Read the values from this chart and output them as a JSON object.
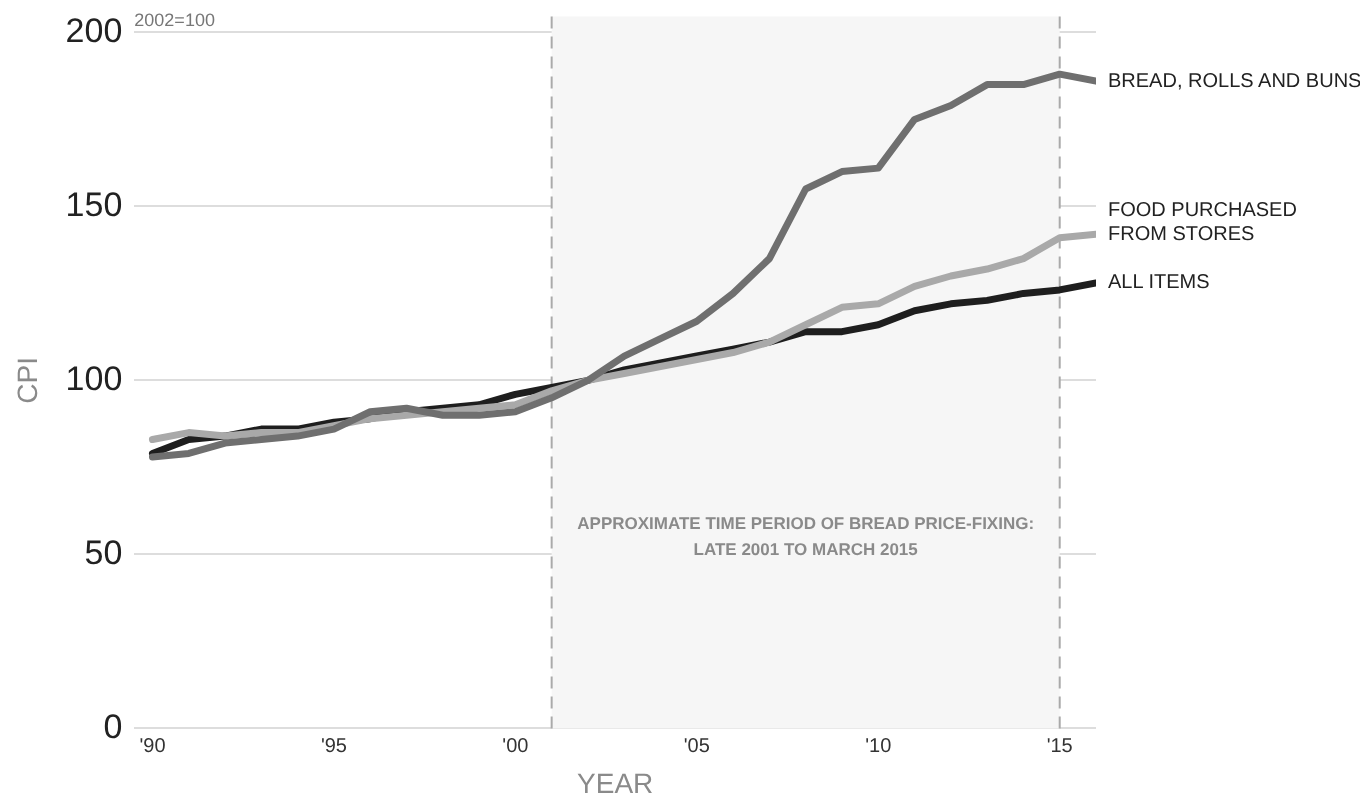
{
  "chart_data": {
    "type": "line",
    "subtitle": "2002=100",
    "xlabel": "YEAR",
    "ylabel": "CPI",
    "x": [
      1990,
      1991,
      1992,
      1993,
      1994,
      1995,
      1996,
      1997,
      1998,
      1999,
      2000,
      2001,
      2002,
      2003,
      2004,
      2005,
      2006,
      2007,
      2008,
      2009,
      2010,
      2011,
      2012,
      2013,
      2014,
      2015,
      2016
    ],
    "series": [
      {
        "name": "BREAD, ROLLS AND BUNS",
        "color": "#6f6f6f",
        "values": [
          78,
          79,
          82,
          83,
          84,
          86,
          91,
          92,
          90,
          90,
          91,
          95,
          100,
          107,
          112,
          117,
          125,
          135,
          155,
          160,
          161,
          175,
          179,
          185,
          185,
          188,
          186
        ]
      },
      {
        "name": "FOOD PURCHASED\nFROM STORES",
        "color": "#a9a9a9",
        "values": [
          83,
          85,
          84,
          85,
          85,
          87,
          89,
          90,
          91,
          92,
          93,
          97,
          100,
          102,
          104,
          106,
          108,
          111,
          116,
          121,
          122,
          127,
          130,
          132,
          135,
          141,
          142
        ]
      },
      {
        "name": "ALL ITEMS",
        "color": "#1e1e1e",
        "values": [
          79,
          83,
          84,
          86,
          86,
          88,
          89,
          91,
          92,
          93,
          96,
          98,
          100,
          103,
          105,
          107,
          109,
          111,
          114,
          114,
          116,
          120,
          122,
          123,
          125,
          126,
          128
        ]
      }
    ],
    "xlim": [
      1989.5,
      2016
    ],
    "xticks": [
      {
        "value": 1990,
        "label": "'90"
      },
      {
        "value": 1995,
        "label": "'95"
      },
      {
        "value": 2000,
        "label": "'00"
      },
      {
        "value": 2005,
        "label": "'05"
      },
      {
        "value": 2010,
        "label": "'10"
      },
      {
        "value": 2015,
        "label": "'15"
      }
    ],
    "ylim": [
      0,
      200
    ],
    "yticks": [
      0,
      50,
      100,
      150,
      200
    ],
    "ref_lines": [
      {
        "axis": "x",
        "value": 2001,
        "color": "#aaaaaa",
        "line_style": "dashed"
      },
      {
        "axis": "x",
        "value": 2015,
        "color": "#aaaaaa",
        "line_style": "dashed"
      }
    ],
    "bands": [
      {
        "axis": "x",
        "from": 2001,
        "to": 2015,
        "color": "#f6f6f6",
        "label": "APPROXIMATE TIME PERIOD OF BREAD PRICE-FIXING:\nLATE 2001 TO MARCH 2015"
      }
    ],
    "grid": "y",
    "legend": false,
    "marker": "none",
    "line_style": "solid"
  }
}
